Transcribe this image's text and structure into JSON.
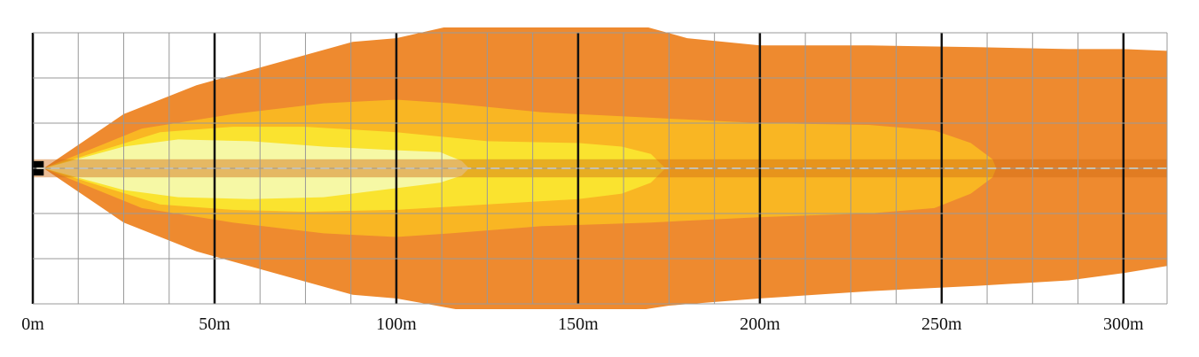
{
  "chart_data": {
    "type": "area",
    "title": "",
    "xlabel": "",
    "ylabel": "",
    "xlim": [
      0,
      312
    ],
    "ylim": [
      -37.5,
      37.5
    ],
    "x_unit": "m",
    "x_major_ticks": [
      0,
      50,
      100,
      150,
      200,
      250,
      300
    ],
    "x_tick_labels": [
      "0m",
      "50m",
      "100m",
      "150m",
      "200m",
      "250m",
      "300m"
    ],
    "x_minor_step": 12.5,
    "y_grid_step": 12.5,
    "grid": true,
    "centerline": {
      "dashed": true,
      "band_half_width": 2.5
    },
    "source_block": {
      "x": [
        0,
        3
      ],
      "half_width": 2
    },
    "zones": [
      {
        "color": "#EE8A2F",
        "upper": [
          [
            3,
            0
          ],
          [
            25,
            15
          ],
          [
            45,
            23
          ],
          [
            88,
            35
          ],
          [
            100,
            36
          ],
          [
            122,
            41
          ],
          [
            145,
            46
          ],
          [
            150,
            46
          ],
          [
            162,
            41
          ],
          [
            180,
            36
          ],
          [
            200,
            34
          ],
          [
            230,
            34
          ],
          [
            260,
            33.5
          ],
          [
            285,
            33
          ],
          [
            300,
            33
          ],
          [
            312,
            32.5
          ]
        ],
        "lower": [
          [
            3,
            0
          ],
          [
            25,
            -15
          ],
          [
            45,
            -23
          ],
          [
            88,
            -35
          ],
          [
            100,
            -36
          ],
          [
            122,
            -40
          ],
          [
            145,
            -44.5
          ],
          [
            150,
            -44.5
          ],
          [
            162,
            -40
          ],
          [
            175,
            -38
          ],
          [
            200,
            -36
          ],
          [
            230,
            -34
          ],
          [
            260,
            -32.5
          ],
          [
            285,
            -31
          ],
          [
            300,
            -29
          ],
          [
            312,
            -27
          ]
        ]
      },
      {
        "color": "#F9B623",
        "upper": [
          [
            3,
            0
          ],
          [
            30,
            11
          ],
          [
            55,
            15
          ],
          [
            80,
            18
          ],
          [
            100,
            19
          ],
          [
            115,
            18
          ],
          [
            140,
            15.5
          ],
          [
            170,
            14
          ],
          [
            200,
            12.5
          ],
          [
            230,
            12
          ],
          [
            248,
            10.5
          ],
          [
            258,
            7
          ],
          [
            264,
            2.5
          ],
          [
            265,
            0
          ]
        ],
        "lower": [
          [
            3,
            0
          ],
          [
            30,
            -11
          ],
          [
            55,
            -15
          ],
          [
            80,
            -18
          ],
          [
            100,
            -19
          ],
          [
            115,
            -18
          ],
          [
            140,
            -16
          ],
          [
            170,
            -15
          ],
          [
            200,
            -13.5
          ],
          [
            230,
            -12.5
          ],
          [
            248,
            -11
          ],
          [
            258,
            -7
          ],
          [
            264,
            -2.5
          ],
          [
            265,
            0
          ]
        ]
      },
      {
        "color": "#FAE32F",
        "upper": [
          [
            3,
            0
          ],
          [
            35,
            10
          ],
          [
            55,
            11.5
          ],
          [
            75,
            11.5
          ],
          [
            100,
            10
          ],
          [
            125,
            7.5
          ],
          [
            150,
            7
          ],
          [
            162,
            6
          ],
          [
            170,
            4
          ],
          [
            174,
            0
          ]
        ],
        "lower": [
          [
            3,
            0
          ],
          [
            35,
            -10
          ],
          [
            55,
            -11.5
          ],
          [
            75,
            -12
          ],
          [
            100,
            -11.5
          ],
          [
            125,
            -10
          ],
          [
            150,
            -8.5
          ],
          [
            162,
            -7
          ],
          [
            170,
            -4
          ],
          [
            174,
            0
          ]
        ]
      },
      {
        "color": "#F6F8A5",
        "upper": [
          [
            3,
            0
          ],
          [
            25,
            6
          ],
          [
            40,
            8
          ],
          [
            60,
            7.5
          ],
          [
            80,
            6
          ],
          [
            100,
            5
          ],
          [
            112,
            4.5
          ],
          [
            118,
            2
          ],
          [
            120,
            0
          ]
        ],
        "lower": [
          [
            3,
            0
          ],
          [
            25,
            -6
          ],
          [
            40,
            -8
          ],
          [
            60,
            -8.5
          ],
          [
            80,
            -8
          ],
          [
            100,
            -5.5
          ],
          [
            112,
            -4
          ],
          [
            118,
            -2
          ],
          [
            120,
            0
          ]
        ]
      }
    ],
    "colors": {
      "background": "#FFFFFF",
      "grid_minor": "#999999",
      "grid_major": "#111111",
      "center_band": "#D06A14",
      "center_band_opacity": 0.45,
      "center_dash": "#F4E6C8",
      "source_block": "#000000"
    }
  }
}
